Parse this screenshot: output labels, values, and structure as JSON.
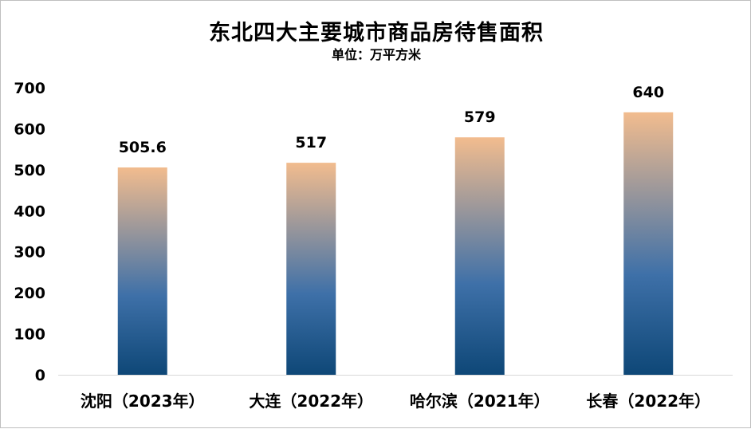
{
  "chart_data": {
    "type": "bar",
    "title": "东北四大主要城市商品房待售面积",
    "subtitle": "单位：万平方米",
    "categories": [
      "沈阳（2023年）",
      "大连（2022年）",
      "哈尔滨（2021年）",
      "长春（2022年）"
    ],
    "values": [
      505.6,
      517,
      579,
      640
    ],
    "value_labels": [
      "505.6",
      "517",
      "579",
      "640"
    ],
    "ylim": [
      0,
      700
    ],
    "yticks": [
      0,
      100,
      200,
      300,
      400,
      500,
      600,
      700
    ],
    "grid": false,
    "legend": "none",
    "colors": {
      "bar_top": "#F2BC8E",
      "bar_mid": "#3E70A8",
      "bar_bottom": "#0E4777",
      "axis": "#D9D9D9"
    }
  }
}
